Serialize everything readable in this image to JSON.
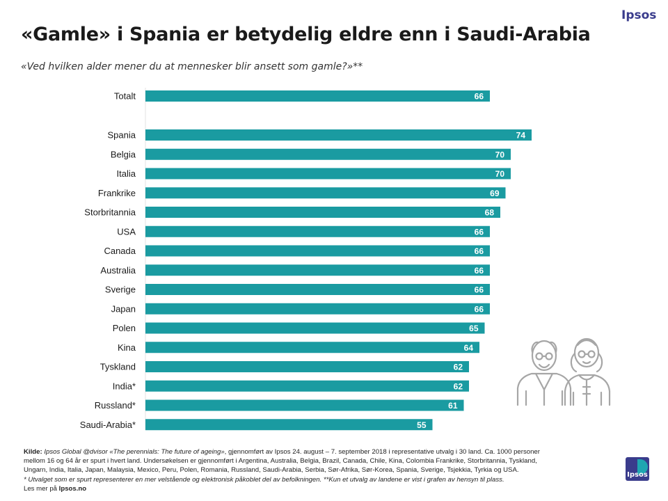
{
  "brand": "Ipsos",
  "title": "«Gamle» i Spania er betydelig eldre enn i Saudi-Arabia",
  "subtitle": "«Ved hvilken alder mener du at mennesker blir ansett som gamle?»**",
  "colors": {
    "bar": "#1a9ba1",
    "brand": "#3a3c8c",
    "logo_accent": "#1fa6b1",
    "illustration": "#a6a6a6"
  },
  "chart_data": {
    "type": "bar",
    "orientation": "horizontal",
    "categories": [
      "Totalt",
      "Spania",
      "Belgia",
      "Italia",
      "Frankrike",
      "Storbritannia",
      "USA",
      "Canada",
      "Australia",
      "Sverige",
      "Japan",
      "Polen",
      "Kina",
      "Tyskland",
      "India*",
      "Russland*",
      "Saudi-Arabia*"
    ],
    "values": [
      66,
      74,
      70,
      70,
      69,
      68,
      66,
      66,
      66,
      66,
      66,
      65,
      64,
      62,
      62,
      61,
      55
    ],
    "data_labels": [
      "66",
      "74",
      "70",
      "70",
      "69",
      "68",
      "66",
      "66",
      "66",
      "66",
      "66",
      "65",
      "64",
      "62",
      "62",
      "61",
      "55"
    ],
    "xlim": [
      0,
      80
    ],
    "gap_after_first": true,
    "grid": false,
    "legend": "none"
  },
  "source": {
    "label": "Kilde:",
    "study": "Ipsos Global @dvisor «The perennials: The future of ageing»",
    "line1_rest": ", gjennomført av Ipsos 24. august – 7. september 2018 i representative utvalg i 30 land. Ca. 1000 personer",
    "line2": "mellom 16 og 64 år er spurt i hvert land. Undersøkelsen er gjennomført i Argentina, Australia, Belgia, Brazil, Canada, Chile, Kina, Colombia Frankrike, Storbritannia, Tyskland,",
    "line3": "Ungarn, India, Italia, Japan, Malaysia, Mexico, Peru, Polen, Romania, Russland, Saudi-Arabia, Serbia, Sør-Afrika, Sør-Korea, Spania, Sverige, Tsjekkia, Tyrkia og USA.",
    "line4": "* Utvalget som er spurt representerer en mer velstående og elektronisk påkoblet del av befolkningen. **Kun et utvalg av landene er vist i grafen av hensyn til plass.",
    "more_prefix": "Les mer på ",
    "more_link": "Ipsos.no"
  },
  "logo": {
    "text": "Ipsos"
  }
}
